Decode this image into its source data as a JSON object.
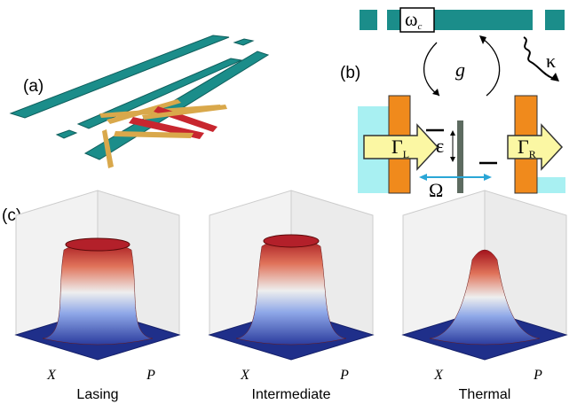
{
  "panel_a": {
    "label": "(a)"
  },
  "panel_b": {
    "label": "(b)",
    "cavity": {
      "symbol": "ω",
      "subscript": "c"
    },
    "coupling": "g",
    "decay": "κ",
    "detuning": "ε",
    "tunneling": "Ω",
    "left_rate": {
      "symbol": "Γ",
      "subscript": "L"
    },
    "right_rate": {
      "symbol": "Γ",
      "subscript": "R"
    }
  },
  "panel_c": {
    "label": "(c)",
    "plots": [
      {
        "title": "Lasing",
        "x_axis": "X",
        "y_axis": "P"
      },
      {
        "title": "Intermediate",
        "x_axis": "X",
        "y_axis": "P"
      },
      {
        "title": "Thermal",
        "x_axis": "X",
        "y_axis": "P"
      }
    ]
  }
}
